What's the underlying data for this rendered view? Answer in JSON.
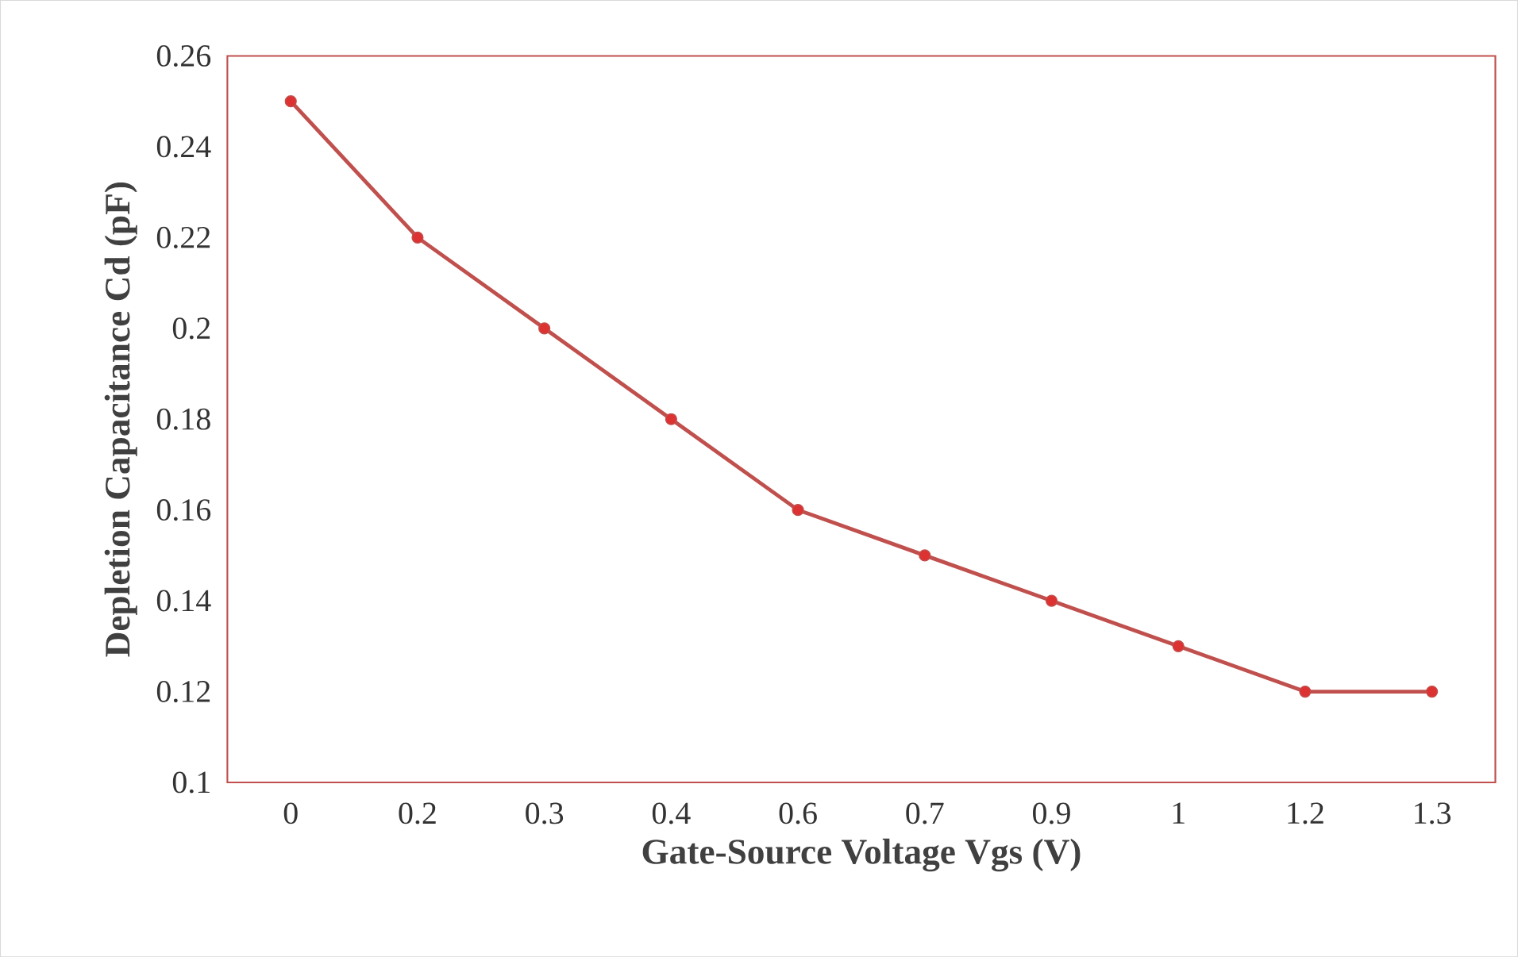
{
  "chart_data": {
    "type": "line",
    "xlabel": "Gate-Source Voltage Vgs (V)",
    "ylabel": "Depletion Capacitance Cd (pF)",
    "categories": [
      "0",
      "0.2",
      "0.3",
      "0.4",
      "0.6",
      "0.7",
      "0.9",
      "1",
      "1.2",
      "1.3"
    ],
    "series": [
      {
        "color": "#c0504d",
        "values": [
          0.25,
          0.22,
          0.2,
          0.18,
          0.16,
          0.15,
          0.14,
          0.13,
          0.12,
          0.12
        ]
      }
    ],
    "ylim": [
      0.1,
      0.26
    ],
    "yticks": [
      0.1,
      0.12,
      0.14,
      0.16,
      0.18,
      0.2,
      0.22,
      0.24,
      0.26
    ],
    "marker": "circle",
    "line_style": "solid"
  }
}
